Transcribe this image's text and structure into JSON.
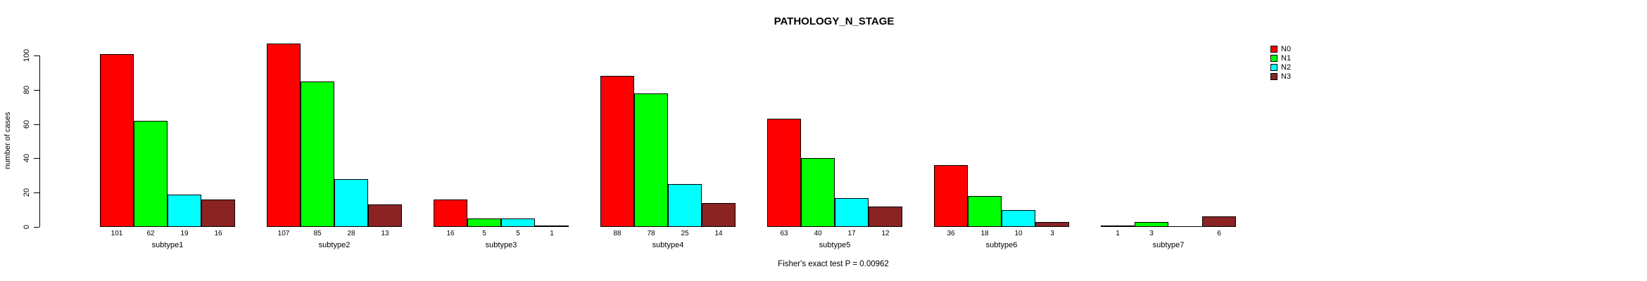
{
  "figure": {
    "background": "#FFFFFF",
    "text_color": "#000000"
  },
  "chart_data": {
    "type": "bar",
    "title": "PATHOLOGY_N_STAGE",
    "xlabel": "",
    "ylabel": "number of cases",
    "annotation": "Fisher's exact test P = 0.00962",
    "ylim": [
      0,
      100
    ],
    "yticks": [
      0,
      20,
      40,
      60,
      80,
      100
    ],
    "grid": false,
    "legend_position": "right-inside-top",
    "bar_value_labels_shown": true,
    "categories": [
      "subtype1",
      "subtype2",
      "subtype3",
      "subtype4",
      "subtype5",
      "subtype6",
      "subtype7"
    ],
    "series": [
      {
        "name": "N0",
        "color": "#FF0000",
        "values": [
          101,
          107,
          16,
          88,
          63,
          36,
          1
        ]
      },
      {
        "name": "N1",
        "color": "#00FF00",
        "values": [
          62,
          85,
          5,
          78,
          40,
          18,
          3
        ]
      },
      {
        "name": "N2",
        "color": "#00FFFF",
        "values": [
          19,
          28,
          5,
          25,
          17,
          10,
          0
        ]
      },
      {
        "name": "N3",
        "color": "#8B2323",
        "values": [
          16,
          13,
          1,
          14,
          12,
          3,
          6
        ]
      }
    ]
  }
}
